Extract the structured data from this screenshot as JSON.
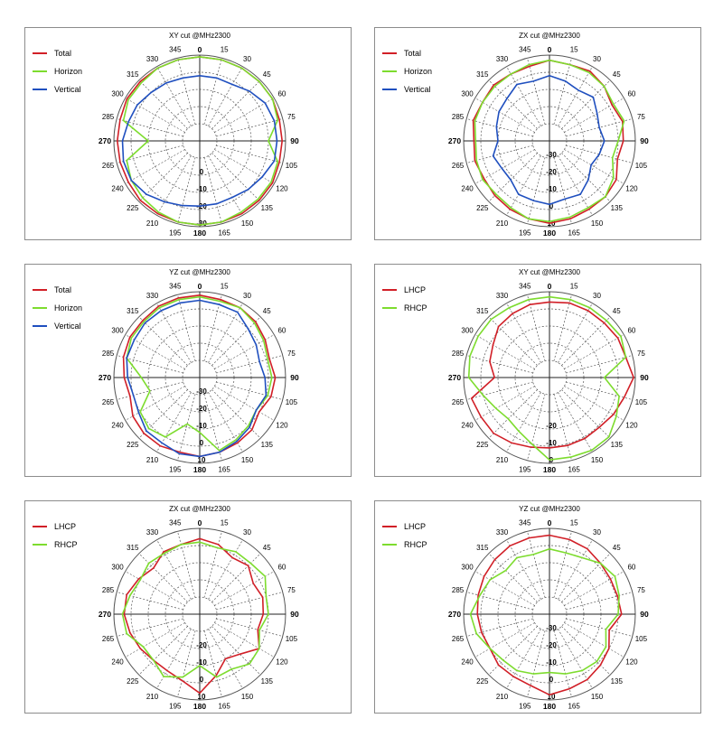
{
  "chart_data": [
    {
      "type": "polar-line",
      "title": "XY cut @MHz2300",
      "angle_labels": [
        "0",
        "15",
        "30",
        "45",
        "60",
        "75",
        "90",
        "105",
        "120",
        "135",
        "150",
        "165",
        "180",
        "195",
        "210",
        "225",
        "240",
        "265",
        "270",
        "285",
        "300",
        "315",
        "330",
        "345"
      ],
      "radial_labels": [
        "0",
        "-10",
        "-20",
        "-30"
      ],
      "series": [
        {
          "name": "Total",
          "color": "#d11f27",
          "values": [
            -1,
            -1,
            -1,
            -1,
            -1,
            -2,
            -2,
            -2,
            -1,
            -1,
            -1,
            -1,
            -1,
            -1,
            -1,
            -1,
            -2,
            -2,
            -2,
            -2,
            -1,
            -1,
            -1,
            -1
          ]
        },
        {
          "name": "Horizon",
          "color": "#7ddc2e",
          "values": [
            -1,
            -1,
            -1,
            -1,
            -1,
            -3,
            -10,
            -3,
            -2,
            -2,
            -2,
            -1,
            -1,
            -1,
            -2,
            -3,
            -4,
            -6,
            -20,
            -4,
            -2,
            -2,
            -1,
            -1
          ]
        },
        {
          "name": "Vertical",
          "color": "#1f4fbf",
          "values": [
            -12,
            -12,
            -12,
            -9,
            -6,
            -5,
            -5,
            -5,
            -8,
            -10,
            -12,
            -12,
            -12,
            -11,
            -9,
            -6,
            -4,
            -4,
            -5,
            -7,
            -8,
            -10,
            -11,
            -12
          ]
        }
      ]
    },
    {
      "type": "polar-line",
      "title": "ZX cut @MHz2300",
      "angle_labels": [
        "0",
        "15",
        "30",
        "45",
        "60",
        "75",
        "90",
        "105",
        "120",
        "135",
        "150",
        "165",
        "180",
        "195",
        "210",
        "225",
        "240",
        "265",
        "270",
        "285",
        "300",
        "315",
        "330",
        "345"
      ],
      "radial_labels": [
        "-30",
        "-20",
        "-10",
        "0",
        "10"
      ],
      "series": [
        {
          "name": "Total",
          "color": "#d11f27",
          "values": [
            -3,
            -4,
            -3,
            -5,
            -8,
            -6,
            -7,
            -9,
            -5,
            -4,
            -4,
            -3,
            -2,
            -3,
            -4,
            -5,
            -6,
            -5,
            -6,
            -4,
            -5,
            -4,
            -5,
            -5
          ]
        },
        {
          "name": "Horizon",
          "color": "#7ddc2e",
          "values": [
            -3,
            -4,
            -4,
            -5,
            -7,
            -5,
            -10,
            -12,
            -7,
            -4,
            -5,
            -4,
            -3,
            -3,
            -5,
            -6,
            -5,
            -6,
            -7,
            -5,
            -5,
            -5,
            -5,
            -4
          ]
        },
        {
          "name": "Vertical",
          "color": "#1f4fbf",
          "values": [
            -12,
            -14,
            -16,
            -14,
            -18,
            -20,
            -18,
            -20,
            -22,
            -18,
            -14,
            -15,
            -13,
            -14,
            -14,
            -18,
            -18,
            -16,
            -20,
            -18,
            -16,
            -15,
            -12,
            -14
          ]
        }
      ]
    },
    {
      "type": "polar-line",
      "title": "YZ cut @MHz2300",
      "angle_labels": [
        "0",
        "15",
        "30",
        "45",
        "60",
        "75",
        "90",
        "105",
        "120",
        "135",
        "150",
        "165",
        "180",
        "195",
        "210",
        "225",
        "240",
        "265",
        "270",
        "285",
        "300",
        "315",
        "330",
        "345"
      ],
      "radial_labels": [
        "-30",
        "-20",
        "-10",
        "0",
        "10"
      ],
      "series": [
        {
          "name": "Total",
          "color": "#d11f27",
          "values": [
            -2,
            -3,
            -3,
            -4,
            -6,
            -8,
            -6,
            -7,
            -10,
            -7,
            -6,
            -5,
            -4,
            -5,
            -4,
            -4,
            -5,
            -8,
            -6,
            -4,
            -3,
            -3,
            -2,
            -2
          ]
        },
        {
          "name": "Horizon",
          "color": "#7ddc2e",
          "values": [
            -3,
            -4,
            -3,
            -5,
            -7,
            -9,
            -8,
            -9,
            -12,
            -10,
            -8,
            -6,
            -18,
            -22,
            -10,
            -8,
            -10,
            -20,
            -16,
            -6,
            -4,
            -4,
            -3,
            -3
          ]
        },
        {
          "name": "Vertical",
          "color": "#1f4fbf",
          "values": [
            -5,
            -6,
            -6,
            -10,
            -12,
            -14,
            -12,
            -10,
            -12,
            -9,
            -7,
            -5,
            -4,
            -4,
            -6,
            -6,
            -9,
            -10,
            -8,
            -6,
            -6,
            -5,
            -5,
            -5
          ]
        }
      ]
    },
    {
      "type": "polar-line",
      "title": "XY cut @MHz2300",
      "angle_labels": [
        "0",
        "15",
        "30",
        "45",
        "60",
        "75",
        "90",
        "105",
        "120",
        "135",
        "150",
        "165",
        "180",
        "195",
        "210",
        "225",
        "240",
        "265",
        "270",
        "285",
        "300",
        "315",
        "330",
        "345"
      ],
      "radial_labels": [
        "-20",
        "-10",
        "0"
      ],
      "series": [
        {
          "name": "LHCP",
          "color": "#d11f27",
          "values": [
            -6,
            -5,
            -5,
            -5,
            -4,
            -4,
            -1,
            -5,
            -7,
            -9,
            -9,
            -9,
            -9,
            -8,
            -6,
            -4,
            -4,
            -3,
            -18,
            -14,
            -12,
            -8,
            -7,
            -6
          ]
        },
        {
          "name": "RHCP",
          "color": "#7ddc2e",
          "values": [
            -3,
            -3,
            -3,
            -3,
            -2,
            -4,
            -18,
            -8,
            -5,
            -1,
            -1,
            -2,
            -2,
            -10,
            -14,
            -16,
            -14,
            -10,
            -3,
            -2,
            -2,
            -2,
            -3,
            -3
          ]
        }
      ]
    },
    {
      "type": "polar-line",
      "title": "ZX cut @MHz2300",
      "angle_labels": [
        "0",
        "15",
        "30",
        "45",
        "60",
        "75",
        "90",
        "105",
        "120",
        "135",
        "150",
        "165",
        "180",
        "195",
        "210",
        "225",
        "240",
        "265",
        "270",
        "285",
        "300",
        "315",
        "330",
        "345"
      ],
      "radial_labels": [
        "-20",
        "-10",
        "0",
        "10"
      ],
      "series": [
        {
          "name": "LHCP",
          "color": "#d11f27",
          "values": [
            -6,
            -8,
            -12,
            -10,
            -14,
            -12,
            -13,
            -15,
            -10,
            -17,
            -20,
            -13,
            -4,
            -10,
            -12,
            -12,
            -10,
            -8,
            -6,
            -6,
            -9,
            -12,
            -8,
            -8
          ]
        },
        {
          "name": "RHCP",
          "color": "#7ddc2e",
          "values": [
            -8,
            -10,
            -8,
            -8,
            -6,
            -10,
            -10,
            -14,
            -10,
            -9,
            -13,
            -12,
            -20,
            -12,
            -8,
            -12,
            -12,
            -6,
            -5,
            -8,
            -10,
            -8,
            -9,
            -8
          ]
        }
      ]
    },
    {
      "type": "polar-line",
      "title": "YZ cut @MHz2300",
      "angle_labels": [
        "0",
        "15",
        "30",
        "45",
        "60",
        "75",
        "90",
        "105",
        "120",
        "135",
        "150",
        "165",
        "180",
        "195",
        "210",
        "225",
        "240",
        "265",
        "270",
        "285",
        "300",
        "315",
        "330",
        "345"
      ],
      "radial_labels": [
        "-30",
        "-20",
        "-10",
        "0",
        "10"
      ],
      "series": [
        {
          "name": "LHCP",
          "color": "#d11f27",
          "values": [
            -4,
            -5,
            -6,
            -8,
            -9,
            -9,
            -8,
            -14,
            -10,
            -8,
            -6,
            -5,
            -3,
            -7,
            -8,
            -8,
            -10,
            -9,
            -8,
            -7,
            -6,
            -5,
            -4,
            -4
          ]
        },
        {
          "name": "RHCP",
          "color": "#7ddc2e",
          "values": [
            -12,
            -13,
            -12,
            -8,
            -6,
            -8,
            -10,
            -16,
            -12,
            -11,
            -12,
            -14,
            -16,
            -14,
            -12,
            -12,
            -10,
            -6,
            -4,
            -8,
            -10,
            -14,
            -12,
            -14
          ]
        }
      ]
    }
  ],
  "style": {
    "grid_color": "#555555",
    "border_color": "#8c8c8c"
  }
}
